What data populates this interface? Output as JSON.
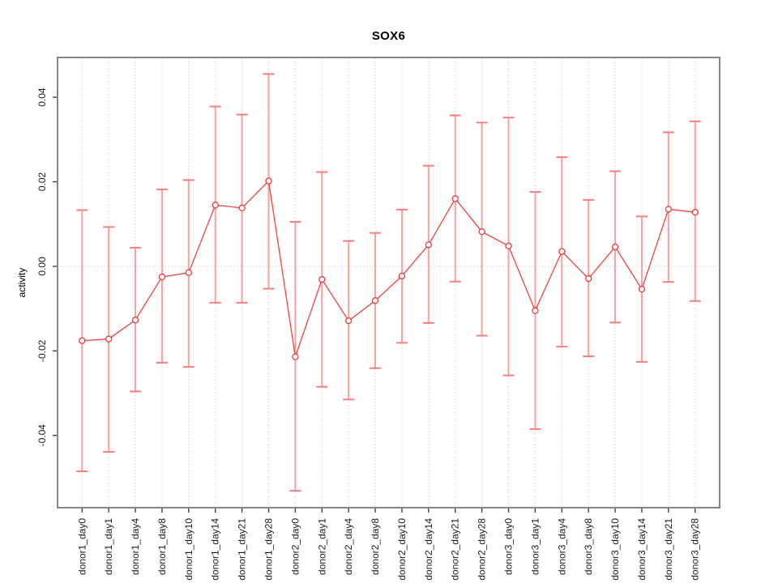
{
  "figure": {
    "background": "#ffffff"
  },
  "chart_data": {
    "type": "line",
    "title": "SOX6",
    "xlabel": "",
    "ylabel": "activity",
    "legend": "none",
    "point_style": "open-circle",
    "error_bars": true,
    "categories": [
      "donor1_day0",
      "donor1_day1",
      "donor1_day4",
      "donor1_day8",
      "donor1_day10",
      "donor1_day14",
      "donor1_day21",
      "donor1_day28",
      "donor2_day0",
      "donor2_day1",
      "donor2_day4",
      "donor2_day8",
      "donor2_day10",
      "donor2_day14",
      "donor2_day21",
      "donor2_day28",
      "donor3_day0",
      "donor3_day1",
      "donor3_day4",
      "donor3_day8",
      "donor3_day10",
      "donor3_day14",
      "donor3_day21",
      "donor3_day28"
    ],
    "series": [
      {
        "name": "activity",
        "values": [
          -0.0176,
          -0.0172,
          -0.0127,
          -0.0025,
          -0.0015,
          0.0145,
          0.0138,
          0.0202,
          -0.0214,
          -0.0031,
          -0.0129,
          -0.0081,
          -0.0023,
          0.0051,
          0.016,
          0.0082,
          0.0048,
          -0.0105,
          0.0035,
          -0.0029,
          0.0046,
          -0.0054,
          0.0135,
          0.0128
        ],
        "upper": [
          0.0133,
          0.0093,
          0.0044,
          0.0182,
          0.0204,
          0.0378,
          0.0359,
          0.0455,
          0.0105,
          0.0223,
          0.006,
          0.0079,
          0.0134,
          0.0238,
          0.0357,
          0.034,
          0.0352,
          0.0176,
          0.0258,
          0.0157,
          0.0225,
          0.0118,
          0.0317,
          0.0343
        ],
        "lower": [
          -0.0485,
          -0.0439,
          -0.0296,
          -0.0228,
          -0.0238,
          -0.0086,
          -0.0086,
          -0.0053,
          -0.0531,
          -0.0285,
          -0.0315,
          -0.0241,
          -0.0181,
          -0.0134,
          -0.0036,
          -0.0164,
          -0.0258,
          -0.0385,
          -0.019,
          -0.0213,
          -0.0133,
          -0.0226,
          -0.0037,
          -0.0082
        ]
      }
    ],
    "ylim": [
      -0.0571,
      0.0494
    ],
    "y_ticks": [
      -0.04,
      -0.02,
      0,
      0.02,
      0.04
    ],
    "y_tick_labels": [
      "-0.04",
      "-0.02",
      "0.00",
      "0.02",
      "0.04"
    ],
    "grid": {
      "vertical": "per-category",
      "horizontal": "zero-only",
      "style": "dotted",
      "color": "#d6d6d6"
    },
    "colors": {
      "series_line": "#ef4343",
      "point_stroke": "#ee3a3a",
      "error_bar": "#f9a0a0",
      "error_cap": "#f57f7f",
      "axis_tick": "#333333",
      "border": "#868686",
      "tick_label": "#1a1a1a"
    }
  }
}
